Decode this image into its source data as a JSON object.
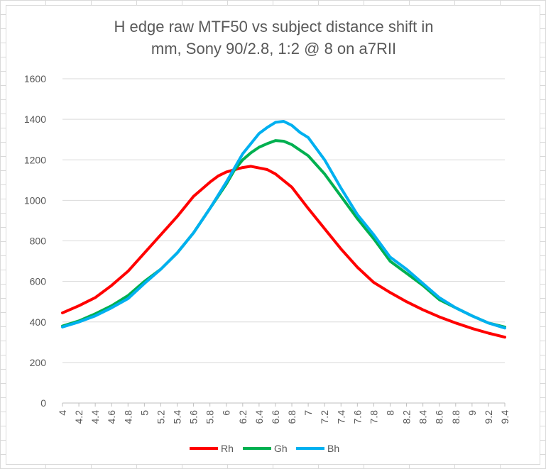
{
  "chart_data": {
    "type": "line",
    "title_lines": [
      "H edge raw MTF50 vs subject distance shift in",
      "mm, Sony 90/2.8, 1:2 @ 8 on a7RII"
    ],
    "xlabel": "",
    "ylabel": "",
    "ylim": [
      0,
      1600
    ],
    "yticks": [
      "0",
      "200",
      "400",
      "600",
      "800",
      "1000",
      "1200",
      "1400",
      "1600"
    ],
    "xlim": [
      4.0,
      9.4
    ],
    "xticks": [
      "4",
      "4.2",
      "4.4",
      "4.6",
      "4.8",
      "5",
      "5.2",
      "5.4",
      "5.6",
      "5.8",
      "6",
      "6.2",
      "6.4",
      "6.6",
      "6.8",
      "7",
      "7.2",
      "7.4",
      "7.6",
      "7.8",
      "8",
      "8.2",
      "8.4",
      "8.6",
      "8.8",
      "9",
      "9.2",
      "9.4"
    ],
    "grid": true,
    "legend_position": "bottom",
    "series": [
      {
        "name": "Rh",
        "color": "#ff0000",
        "points": [
          [
            4.0,
            445
          ],
          [
            4.2,
            480
          ],
          [
            4.4,
            520
          ],
          [
            4.6,
            580
          ],
          [
            4.8,
            650
          ],
          [
            5.0,
            740
          ],
          [
            5.2,
            830
          ],
          [
            5.4,
            920
          ],
          [
            5.6,
            1020
          ],
          [
            5.8,
            1090
          ],
          [
            5.9,
            1120
          ],
          [
            6.0,
            1140
          ],
          [
            6.2,
            1162
          ],
          [
            6.3,
            1168
          ],
          [
            6.4,
            1160
          ],
          [
            6.5,
            1152
          ],
          [
            6.6,
            1130
          ],
          [
            6.8,
            1065
          ],
          [
            7.0,
            960
          ],
          [
            7.2,
            860
          ],
          [
            7.4,
            760
          ],
          [
            7.6,
            670
          ],
          [
            7.8,
            595
          ],
          [
            8.0,
            545
          ],
          [
            8.2,
            500
          ],
          [
            8.4,
            460
          ],
          [
            8.6,
            425
          ],
          [
            8.8,
            395
          ],
          [
            9.0,
            368
          ],
          [
            9.2,
            345
          ],
          [
            9.4,
            325
          ]
        ]
      },
      {
        "name": "Gh",
        "color": "#00b050",
        "points": [
          [
            4.0,
            380
          ],
          [
            4.2,
            405
          ],
          [
            4.4,
            440
          ],
          [
            4.6,
            480
          ],
          [
            4.8,
            530
          ],
          [
            5.0,
            600
          ],
          [
            5.2,
            660
          ],
          [
            5.4,
            740
          ],
          [
            5.6,
            840
          ],
          [
            5.8,
            960
          ],
          [
            6.0,
            1080
          ],
          [
            6.1,
            1150
          ],
          [
            6.2,
            1200
          ],
          [
            6.3,
            1235
          ],
          [
            6.4,
            1262
          ],
          [
            6.5,
            1280
          ],
          [
            6.6,
            1295
          ],
          [
            6.7,
            1292
          ],
          [
            6.8,
            1275
          ],
          [
            7.0,
            1220
          ],
          [
            7.2,
            1130
          ],
          [
            7.4,
            1020
          ],
          [
            7.6,
            910
          ],
          [
            7.8,
            810
          ],
          [
            8.0,
            700
          ],
          [
            8.2,
            640
          ],
          [
            8.4,
            580
          ],
          [
            8.6,
            510
          ],
          [
            8.8,
            470
          ],
          [
            9.0,
            430
          ],
          [
            9.2,
            395
          ],
          [
            9.4,
            375
          ]
        ]
      },
      {
        "name": "Bh",
        "color": "#00b0f0",
        "points": [
          [
            4.0,
            375
          ],
          [
            4.2,
            400
          ],
          [
            4.4,
            430
          ],
          [
            4.6,
            470
          ],
          [
            4.8,
            515
          ],
          [
            5.0,
            590
          ],
          [
            5.2,
            660
          ],
          [
            5.4,
            740
          ],
          [
            5.6,
            840
          ],
          [
            5.8,
            960
          ],
          [
            6.0,
            1090
          ],
          [
            6.1,
            1160
          ],
          [
            6.2,
            1230
          ],
          [
            6.3,
            1280
          ],
          [
            6.4,
            1330
          ],
          [
            6.5,
            1360
          ],
          [
            6.6,
            1385
          ],
          [
            6.7,
            1390
          ],
          [
            6.8,
            1370
          ],
          [
            6.9,
            1335
          ],
          [
            7.0,
            1310
          ],
          [
            7.2,
            1200
          ],
          [
            7.4,
            1060
          ],
          [
            7.6,
            930
          ],
          [
            7.8,
            830
          ],
          [
            8.0,
            720
          ],
          [
            8.2,
            660
          ],
          [
            8.4,
            590
          ],
          [
            8.6,
            520
          ],
          [
            8.8,
            470
          ],
          [
            9.0,
            430
          ],
          [
            9.2,
            395
          ],
          [
            9.4,
            370
          ]
        ]
      }
    ]
  }
}
